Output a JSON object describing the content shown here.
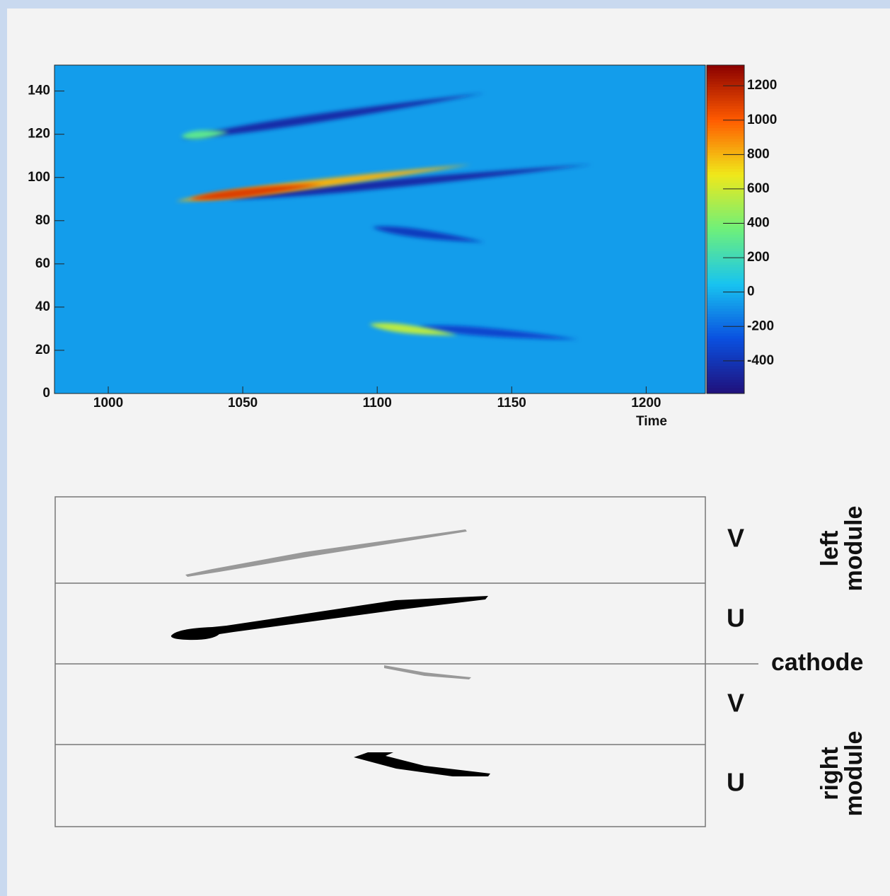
{
  "chart_data": {
    "type": "heatmap",
    "xlabel": "Time",
    "xlim": [
      980,
      1222
    ],
    "xticks": [
      1000,
      1050,
      1100,
      1150,
      1200
    ],
    "ylim": [
      0,
      152
    ],
    "yticks": [
      0,
      20,
      40,
      60,
      80,
      100,
      120,
      140
    ],
    "zlim": [
      -590,
      1320
    ],
    "zticks": [
      -400,
      -200,
      0,
      200,
      400,
      600,
      800,
      1000,
      1200
    ],
    "colormap": [
      "#20107a",
      "#0a50e0",
      "#18c4f0",
      "#6ef07a",
      "#f0e81a",
      "#ff5a00",
      "#8a0000"
    ],
    "background": -60,
    "tracks": [
      {
        "x": [
          1027,
          1140
        ],
        "y": [
          118,
          139
        ],
        "value": -450
      },
      {
        "x": [
          1027,
          1045
        ],
        "y": [
          119,
          121
        ],
        "value": 300
      },
      {
        "x": [
          1045,
          1180
        ],
        "y": [
          90,
          106
        ],
        "value": -450
      },
      {
        "x": [
          1025,
          1135
        ],
        "y": [
          89,
          106
        ],
        "value": 800
      },
      {
        "x": [
          1030,
          1080
        ],
        "y": [
          90,
          97
        ],
        "value": 1100
      },
      {
        "x": [
          1098,
          1140
        ],
        "y": [
          77,
          70
        ],
        "value": -380
      },
      {
        "x": [
          1115,
          1175
        ],
        "y": [
          31,
          25
        ],
        "value": -330
      },
      {
        "x": [
          1097,
          1130
        ],
        "y": [
          32,
          27
        ],
        "value": 550
      }
    ]
  },
  "diagram": {
    "planes": [
      "V",
      "U",
      "V",
      "U"
    ],
    "cathode": "cathode",
    "modules": [
      "left module",
      "right module"
    ]
  }
}
